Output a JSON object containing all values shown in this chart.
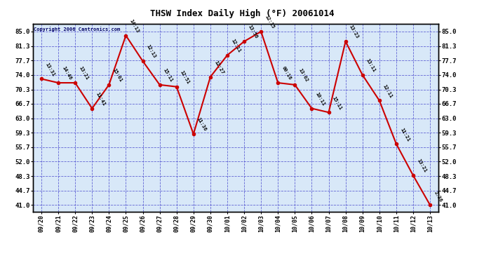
{
  "title": "THSW Index Daily High (°F) 20061014",
  "copyright": "Copyright 2006 Cantronics.com",
  "x_labels": [
    "09/20",
    "09/21",
    "09/22",
    "09/23",
    "09/24",
    "09/25",
    "09/26",
    "09/27",
    "09/28",
    "09/29",
    "09/30",
    "10/01",
    "10/02",
    "10/03",
    "10/04",
    "10/05",
    "10/06",
    "10/07",
    "10/08",
    "10/09",
    "10/10",
    "10/11",
    "10/12",
    "10/13"
  ],
  "y_values": [
    73.0,
    72.0,
    72.0,
    65.5,
    71.5,
    84.0,
    77.5,
    71.5,
    71.0,
    59.0,
    73.5,
    79.0,
    82.5,
    85.0,
    72.0,
    71.5,
    65.5,
    64.5,
    82.5,
    74.0,
    67.5,
    56.5,
    48.5,
    41.0
  ],
  "time_labels": [
    "13:31",
    "14:46",
    "13:21",
    "11:41",
    "15:01",
    "14:13",
    "12:13",
    "15:11",
    "12:51",
    "11:36",
    "12:27",
    "12:11",
    "13:56",
    "12:15",
    "00:16",
    "13:02",
    "10:11",
    "15:11",
    "13:23",
    "13:11",
    "12:11",
    "11:21",
    "13:21",
    "2:36"
  ],
  "y_ticks": [
    41.0,
    44.7,
    48.3,
    52.0,
    55.7,
    59.3,
    63.0,
    66.7,
    70.3,
    74.0,
    77.7,
    81.3,
    85.0
  ],
  "ylim": [
    39.3,
    87.0
  ],
  "bg_color": "#d8e8f8",
  "line_color": "#cc0000",
  "marker_color": "#cc0000",
  "grid_color": "#4444cc",
  "title_color": "#000000",
  "border_color": "#000000",
  "copyright_color": "#000066",
  "tick_label_color": "#000000",
  "x_tick_color": "#000033"
}
